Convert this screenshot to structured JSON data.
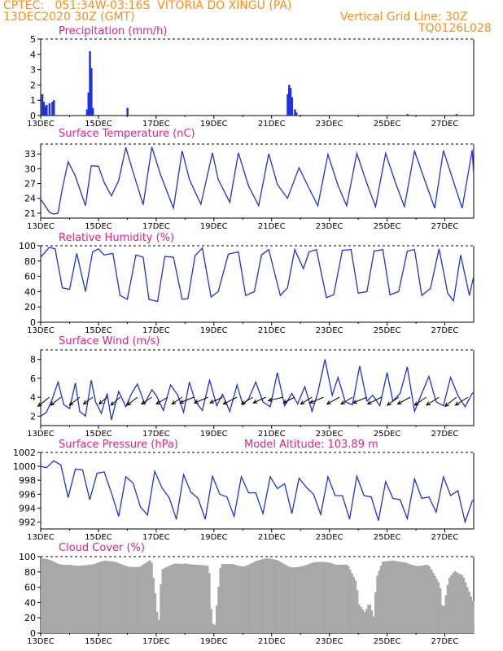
{
  "header": {
    "line1": "CPTEC:   051:34W-03:16S  VITORIA DO XINGU (PA)",
    "line2": "13DEC2020 30Z (GMT)",
    "grid_note": "Vertical Grid Line: 30Z",
    "code": "TQ0126L028"
  },
  "x_axis": {
    "days_start": 13,
    "days_end": 28,
    "tick_labels": [
      "13DEC",
      "15DEC",
      "17DEC",
      "19DEC",
      "21DEC",
      "23DEC",
      "25DEC",
      "27DEC"
    ],
    "tick_days": [
      13,
      15,
      17,
      19,
      21,
      23,
      25,
      27
    ]
  },
  "colors": {
    "header": "#ff8c1a",
    "title": "#e0208c",
    "line": "#2030e0",
    "cloud": "#a8a8a8",
    "axis": "#000000"
  },
  "chart_data": [
    {
      "type": "bar",
      "title": "Precipitation (mm/h)",
      "ylim": [
        0,
        5
      ],
      "yticks": [
        0,
        1,
        2,
        3,
        4,
        5
      ],
      "x_days": [
        13.05,
        13.1,
        13.15,
        13.2,
        13.3,
        13.4,
        13.45,
        14.6,
        14.65,
        14.7,
        14.75,
        14.8,
        16.0,
        21.55,
        21.6,
        21.65,
        21.7,
        21.8,
        21.85,
        25.7,
        27.4
      ],
      "values": [
        1.4,
        0.9,
        0.6,
        0.7,
        0.8,
        0.9,
        1.0,
        0.4,
        1.5,
        4.2,
        3.1,
        0.5,
        0.5,
        1.4,
        2.0,
        1.8,
        1.2,
        0.4,
        0.2,
        0.1,
        0.1
      ]
    },
    {
      "type": "line",
      "title": "Surface Temperature (nC)",
      "ylim": [
        20,
        35
      ],
      "yticks": [
        21,
        24,
        27,
        30,
        33
      ],
      "x_days": [
        13,
        13.3,
        13.45,
        13.6,
        13.75,
        13.95,
        14.2,
        14.55,
        14.75,
        15.0,
        15.2,
        15.45,
        15.7,
        15.95,
        16.15,
        16.55,
        16.85,
        17.15,
        17.6,
        17.9,
        18.15,
        18.55,
        18.95,
        19.15,
        19.55,
        19.85,
        20.2,
        20.55,
        20.9,
        21.2,
        21.55,
        21.95,
        22.3,
        22.6,
        22.95,
        23.3,
        23.6,
        23.95,
        24.3,
        24.6,
        24.95,
        25.3,
        25.6,
        25.95,
        26.35,
        26.65,
        26.95,
        27.35,
        27.6,
        27.95,
        28.0
      ],
      "values": [
        23.8,
        21.2,
        20.8,
        21.0,
        26.0,
        31.4,
        28.5,
        22.5,
        30.6,
        30.5,
        27.2,
        24.5,
        27.6,
        34.3,
        30.3,
        22.7,
        34.4,
        28.8,
        22.0,
        33.6,
        27.8,
        22.8,
        33.2,
        27.8,
        23.2,
        33.2,
        26.5,
        22.5,
        33.0,
        26.8,
        24.0,
        30.2,
        26.0,
        22.5,
        32.9,
        26.6,
        22.5,
        33.1,
        27.0,
        22.3,
        33.1,
        27.0,
        22.3,
        33.6,
        26.9,
        22.0,
        33.7,
        26.5,
        22.0,
        33.8,
        28.5
      ]
    },
    {
      "type": "line",
      "title": "Relative Humidity (%)",
      "ylim": [
        0,
        100
      ],
      "yticks": [
        0,
        20,
        40,
        60,
        80,
        100
      ],
      "x_days": [
        13,
        13.3,
        13.5,
        13.75,
        14.0,
        14.25,
        14.55,
        14.8,
        15.0,
        15.2,
        15.5,
        15.75,
        16.0,
        16.3,
        16.55,
        16.75,
        17.05,
        17.3,
        17.6,
        17.9,
        18.1,
        18.35,
        18.6,
        18.9,
        19.15,
        19.5,
        19.85,
        20.1,
        20.4,
        20.65,
        20.9,
        21.3,
        21.55,
        21.8,
        22.1,
        22.3,
        22.55,
        22.9,
        23.15,
        23.45,
        23.75,
        24.0,
        24.3,
        24.55,
        24.85,
        25.1,
        25.4,
        25.7,
        25.95,
        26.2,
        26.5,
        26.8,
        27.1,
        27.3,
        27.55,
        27.85,
        28.0
      ],
      "values": [
        85,
        98,
        96,
        45,
        43,
        90,
        40,
        92,
        96,
        88,
        90,
        35,
        30,
        88,
        85,
        30,
        27,
        86,
        85,
        30,
        31,
        87,
        97,
        33,
        40,
        89,
        92,
        35,
        40,
        88,
        95,
        35,
        45,
        95,
        70,
        92,
        95,
        32,
        36,
        94,
        95,
        38,
        40,
        93,
        95,
        36,
        40,
        93,
        95,
        35,
        44,
        96,
        38,
        28,
        88,
        35,
        60
      ]
    },
    {
      "type": "line",
      "title": "Surface Wind (m/s)",
      "ylim": [
        1,
        9
      ],
      "yticks": [
        2,
        4,
        6,
        8
      ],
      "x_days": [
        13,
        13.2,
        13.4,
        13.6,
        13.8,
        14.0,
        14.2,
        14.35,
        14.55,
        14.75,
        14.9,
        15.1,
        15.3,
        15.45,
        15.7,
        15.95,
        16.15,
        16.35,
        16.6,
        16.85,
        17.0,
        17.25,
        17.5,
        17.75,
        17.95,
        18.15,
        18.35,
        18.6,
        18.85,
        19.1,
        19.3,
        19.55,
        19.8,
        20.0,
        20.2,
        20.45,
        20.7,
        20.95,
        21.2,
        21.45,
        21.7,
        21.9,
        22.15,
        22.4,
        22.6,
        22.85,
        23.1,
        23.3,
        23.55,
        23.8,
        24.05,
        24.3,
        24.5,
        24.75,
        25.0,
        25.2,
        25.45,
        25.7,
        25.95,
        26.2,
        26.45,
        26.7,
        26.95,
        27.2,
        27.45,
        27.7,
        27.95,
        28.0
      ],
      "values": [
        2.0,
        2.4,
        3.8,
        5.6,
        3.2,
        2.8,
        5.5,
        2.5,
        2.0,
        5.8,
        3.5,
        2.3,
        4.4,
        1.6,
        4.6,
        3.0,
        4.4,
        5.4,
        3.3,
        4.8,
        4.2,
        2.6,
        5.3,
        4.2,
        2.4,
        5.6,
        3.6,
        2.6,
        5.8,
        3.1,
        4.3,
        2.5,
        5.3,
        3.2,
        3.8,
        5.6,
        3.5,
        3.0,
        6.6,
        3.1,
        4.4,
        3.3,
        5.1,
        2.5,
        4.5,
        8.0,
        4.2,
        6.1,
        3.5,
        3.2,
        7.3,
        3.6,
        4.2,
        3.1,
        6.6,
        3.6,
        4.4,
        7.2,
        2.5,
        4.4,
        6.2,
        3.5,
        3.1,
        6.1,
        4.2,
        3.0,
        4.4,
        4.5
      ],
      "arrow_days": [
        13.3,
        13.7,
        14.35,
        14.8,
        15.3,
        15.75,
        16.35,
        16.85,
        17.4,
        17.9,
        18.3,
        18.8,
        19.3,
        19.8,
        20.35,
        20.8,
        21.4,
        21.8,
        22.4,
        22.8,
        23.35,
        23.8,
        24.3,
        24.8,
        25.4,
        25.8,
        26.35,
        26.8,
        27.4,
        27.8
      ],
      "arrow_u": [
        -1.0,
        -0.9,
        -0.9,
        -0.8,
        -0.7,
        -0.8,
        -0.9,
        -0.9,
        -1.0,
        -0.9,
        -1.2,
        -1.2,
        -1.1,
        -1.2,
        -1.0,
        -1.1,
        -1.3,
        -1.0,
        -1.0,
        -1.2,
        -1.1,
        -1.0,
        -1.2,
        -1.2,
        -1.0,
        -1.1,
        -1.0,
        -1.1,
        -1.0,
        -1.1
      ],
      "arrow_v": [
        -0.8,
        -0.7,
        -0.7,
        -0.6,
        -0.6,
        -0.7,
        -0.7,
        -0.6,
        -0.6,
        -0.6,
        -0.5,
        -0.5,
        -0.5,
        -0.6,
        -0.6,
        -0.5,
        -0.3,
        -0.5,
        -0.6,
        -0.5,
        -0.6,
        -0.6,
        -0.5,
        -0.6,
        -0.7,
        -0.6,
        -0.7,
        -0.7,
        -0.8,
        -0.7
      ]
    },
    {
      "type": "line",
      "title": "Surface Pressure (hPa)",
      "subtitle": "Model Altitude: 103.89 m",
      "ylim": [
        991,
        1002
      ],
      "yticks": [
        992,
        994,
        996,
        998,
        1000,
        1002
      ],
      "x_days": [
        13,
        13.2,
        13.45,
        13.7,
        13.95,
        14.2,
        14.45,
        14.7,
        14.95,
        15.2,
        15.45,
        15.7,
        15.95,
        16.2,
        16.45,
        16.7,
        16.95,
        17.2,
        17.45,
        17.7,
        17.95,
        18.2,
        18.45,
        18.7,
        18.95,
        19.2,
        19.45,
        19.7,
        19.95,
        20.2,
        20.45,
        20.7,
        20.95,
        21.2,
        21.45,
        21.7,
        21.95,
        22.2,
        22.45,
        22.7,
        22.95,
        23.2,
        23.45,
        23.7,
        23.95,
        24.2,
        24.45,
        24.7,
        24.95,
        25.2,
        25.45,
        25.7,
        25.95,
        26.2,
        26.45,
        26.7,
        26.95,
        27.2,
        27.45,
        27.7,
        27.95,
        28.0
      ],
      "values": [
        1000.0,
        999.8,
        1000.8,
        1000.2,
        995.5,
        999.6,
        999.5,
        995.2,
        999.0,
        999.2,
        996.2,
        992.8,
        998.5,
        997.6,
        994.2,
        993.0,
        999.3,
        996.9,
        995.5,
        992.4,
        998.8,
        996.3,
        995.4,
        992.4,
        998.6,
        996.0,
        995.6,
        992.8,
        998.5,
        996.2,
        996.2,
        993.2,
        998.5,
        996.8,
        997.5,
        993.2,
        998.3,
        997.0,
        996.0,
        993.1,
        998.5,
        995.8,
        995.8,
        992.4,
        998.6,
        995.8,
        995.6,
        992.2,
        997.8,
        995.4,
        995.2,
        992.5,
        998.2,
        995.4,
        995.6,
        993.4,
        998.5,
        995.8,
        996.5,
        992.0,
        995.0,
        995.2
      ]
    },
    {
      "type": "area",
      "title": "Cloud Cover (%)",
      "ylim": [
        0,
        100
      ],
      "yticks": [
        0,
        20,
        40,
        60,
        80,
        100
      ],
      "x_days": [
        13,
        13.3,
        13.6,
        14.0,
        14.4,
        14.8,
        15.2,
        15.6,
        16.0,
        16.4,
        16.8,
        16.95,
        17.05,
        17.15,
        17.6,
        18.0,
        18.4,
        18.8,
        18.9,
        19.0,
        19.2,
        19.6,
        20.0,
        20.4,
        20.8,
        21.2,
        21.6,
        22.0,
        22.4,
        22.8,
        23.2,
        23.6,
        23.9,
        24.0,
        24.2,
        24.35,
        24.5,
        24.6,
        24.8,
        25.2,
        25.6,
        26.0,
        26.4,
        26.8,
        26.9,
        27.1,
        27.3,
        27.6,
        28.0
      ],
      "values": [
        95,
        93,
        90,
        92,
        90,
        88,
        92,
        93,
        90,
        88,
        94,
        45,
        5,
        80,
        92,
        94,
        90,
        85,
        10,
        8,
        88,
        92,
        90,
        94,
        95,
        93,
        88,
        90,
        92,
        90,
        88,
        92,
        70,
        40,
        28,
        40,
        20,
        70,
        90,
        94,
        95,
        90,
        88,
        60,
        25,
        70,
        82,
        78,
        38
      ]
    }
  ]
}
